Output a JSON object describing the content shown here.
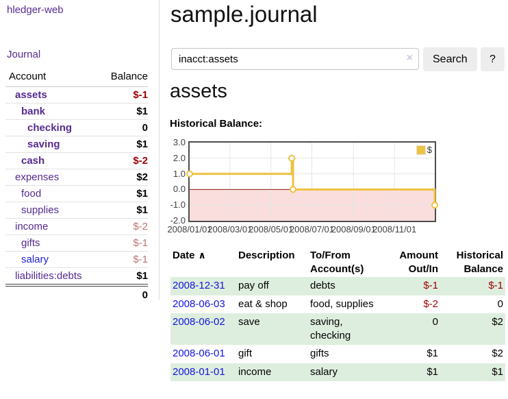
{
  "sidebar": {
    "brand": "hledger-web",
    "journal_label": "Journal",
    "accounts_table": {
      "headers": {
        "account": "Account",
        "balance": "Balance"
      },
      "rows": [
        {
          "name": "assets",
          "balance": "$-1",
          "level": 1,
          "selected": true
        },
        {
          "name": "bank",
          "balance": "$1",
          "level": 2,
          "selected": true
        },
        {
          "name": "checking",
          "balance": "0",
          "level": 3,
          "selected": true
        },
        {
          "name": "saving",
          "balance": "$1",
          "level": 3,
          "selected": true
        },
        {
          "name": "cash",
          "balance": "$-2",
          "level": 2,
          "selected": true
        },
        {
          "name": "expenses",
          "balance": "$2",
          "level": 1,
          "selected": false
        },
        {
          "name": "food",
          "balance": "$1",
          "level": 2,
          "selected": false
        },
        {
          "name": "supplies",
          "balance": "$1",
          "level": 2,
          "selected": false
        },
        {
          "name": "income",
          "balance": "$-2",
          "level": 1,
          "selected": false
        },
        {
          "name": "gifts",
          "balance": "$-1",
          "level": 2,
          "selected": false
        },
        {
          "name": "salary",
          "balance": "$-1",
          "level": 2,
          "selected": false
        },
        {
          "name": "liabilities:debts",
          "balance": "$1",
          "level": 1,
          "selected": false
        }
      ],
      "total": "0"
    }
  },
  "main": {
    "title": "sample.journal",
    "search": {
      "query": "inacct:assets",
      "clear_icon": "×",
      "button_label": "Search",
      "help_label": "?"
    },
    "account_heading": "assets",
    "chart_label": "Historical Balance:"
  },
  "chart_data": {
    "type": "line",
    "title": "Historical Balance",
    "series": [
      {
        "name": "$",
        "color": "#edc240",
        "step": true,
        "x": [
          "2008-01-01",
          "2008-06-01",
          "2008-06-03",
          "2008-12-31"
        ],
        "values": [
          1,
          2,
          0,
          -1
        ]
      }
    ],
    "x_ticks": [
      "2008/01/01",
      "2008/03/01",
      "2008/05/01",
      "2008/07/01",
      "2008/09/01",
      "2008/11/01"
    ],
    "y_ticks": [
      "3.0",
      "2.0",
      "1.0",
      "0.0",
      "-1.0",
      "-2.0"
    ],
    "xlim": [
      "2008-01-01",
      "2008-12-31"
    ],
    "ylim": [
      -2,
      3
    ],
    "grid": true,
    "legend_position": "top-right",
    "negative_region_fill": "#fadddd",
    "zero_line_color": "#8b1a1a"
  },
  "register_table": {
    "headers": {
      "date": "Date",
      "sort_icon": "∧",
      "description": "Description",
      "accounts": "To/From Account(s)",
      "amount": "Amount Out/In",
      "balance": "Historical Balance"
    },
    "rows": [
      {
        "date": "2008-12-31",
        "description": "pay off",
        "accounts": "debts",
        "amount": "$-1",
        "balance": "$-1"
      },
      {
        "date": "2008-06-03",
        "description": "eat & shop",
        "accounts": "food, supplies",
        "amount": "$-2",
        "balance": "0"
      },
      {
        "date": "2008-06-02",
        "description": "save",
        "accounts": "saving, checking",
        "amount": "0",
        "balance": "$2"
      },
      {
        "date": "2008-06-01",
        "description": "gift",
        "accounts": "gifts",
        "amount": "$1",
        "balance": "$2"
      },
      {
        "date": "2008-01-01",
        "description": "income",
        "accounts": "salary",
        "amount": "$1",
        "balance": "$1"
      }
    ]
  }
}
